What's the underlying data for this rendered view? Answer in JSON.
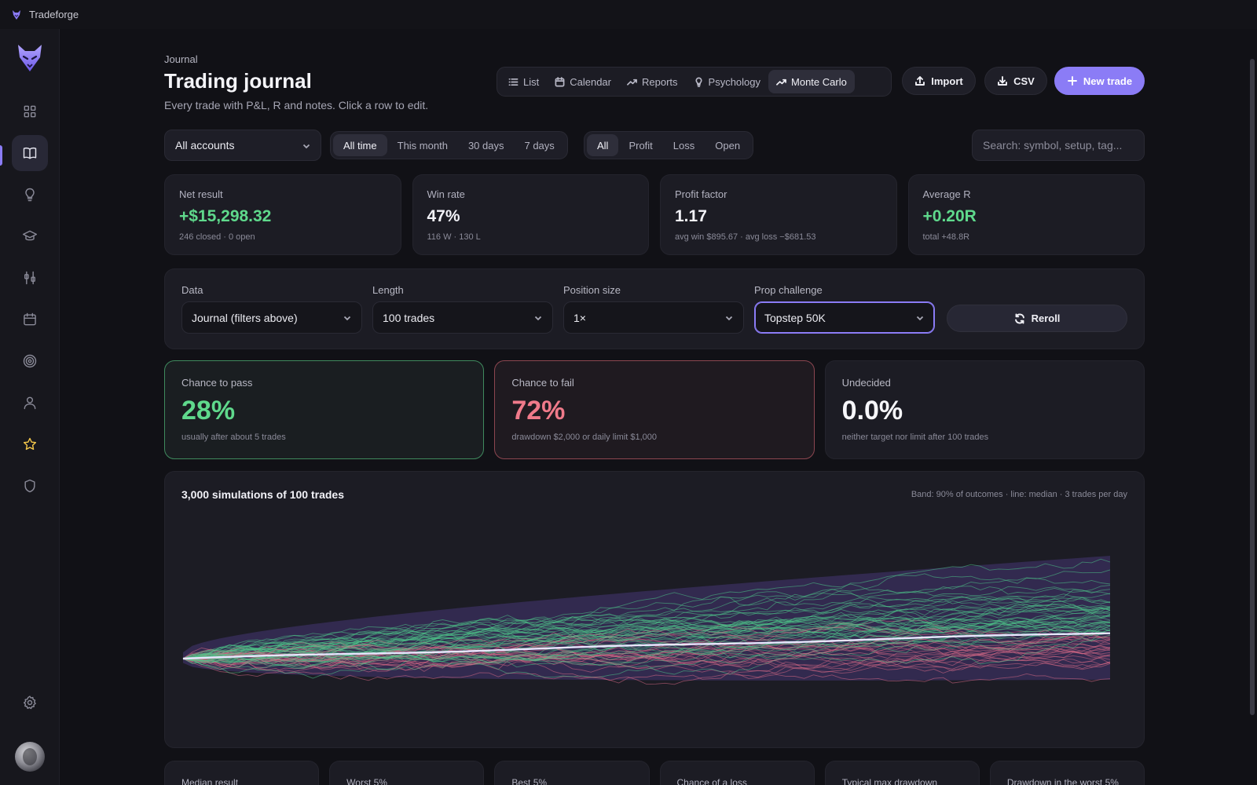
{
  "app": {
    "title": "Tradeforge"
  },
  "sidebar": {
    "items": [
      {
        "name": "dashboard",
        "icon": "grid-icon"
      },
      {
        "name": "journal",
        "icon": "book-icon",
        "active": true
      },
      {
        "name": "ideas",
        "icon": "lightbulb-icon"
      },
      {
        "name": "learn",
        "icon": "graduation-cap-icon"
      },
      {
        "name": "tools",
        "icon": "sliders-icon"
      },
      {
        "name": "calendar",
        "icon": "calendar-icon"
      },
      {
        "name": "goals",
        "icon": "target-icon"
      },
      {
        "name": "profile",
        "icon": "user-icon"
      },
      {
        "name": "favorites",
        "icon": "star-icon"
      },
      {
        "name": "security",
        "icon": "shield-icon"
      }
    ],
    "settings_icon": "gear-icon",
    "accent": "#8b7cf6"
  },
  "header": {
    "breadcrumb": "Journal",
    "title": "Trading journal",
    "subtitle": "Every trade with P&L, R and notes. Click a row to edit.",
    "view_tabs": [
      {
        "label": "List",
        "icon": "list-icon"
      },
      {
        "label": "Calendar",
        "icon": "calendar-icon"
      },
      {
        "label": "Reports",
        "icon": "trend-icon"
      },
      {
        "label": "Psychology",
        "icon": "lightbulb-icon"
      },
      {
        "label": "Monte Carlo",
        "icon": "trend-icon",
        "active": true
      }
    ],
    "import_label": "Import",
    "csv_label": "CSV",
    "new_trade_label": "New trade"
  },
  "filters": {
    "account": "All accounts",
    "periods": [
      "All time",
      "This month",
      "30 days",
      "7 days"
    ],
    "period_active": "All time",
    "outcomes": [
      "All",
      "Profit",
      "Loss",
      "Open"
    ],
    "outcome_active": "All",
    "search_placeholder": "Search: symbol, setup, tag..."
  },
  "stats": [
    {
      "label": "Net result",
      "value": "+$15,298.32",
      "sub": "246 closed · 0 open",
      "positive": true
    },
    {
      "label": "Win rate",
      "value": "47%",
      "sub": "116 W · 130 L"
    },
    {
      "label": "Profit factor",
      "value": "1.17",
      "sub": "avg win $895.67 · avg loss −$681.53"
    },
    {
      "label": "Average R",
      "value": "+0.20R",
      "sub": "total +48.8R",
      "positive": true
    }
  ],
  "controls": {
    "data_label": "Data",
    "data_value": "Journal (filters above)",
    "length_label": "Length",
    "length_value": "100 trades",
    "size_label": "Position size",
    "size_value": "1×",
    "prop_label": "Prop challenge",
    "prop_value": "Topstep 50K",
    "reroll_label": "Reroll"
  },
  "outcomes": {
    "pass": {
      "label": "Chance to pass",
      "value": "28%",
      "sub": "usually after about 5 trades"
    },
    "fail": {
      "label": "Chance to fail",
      "value": "72%",
      "sub": "drawdown $2,000 or daily limit $1,000"
    },
    "undecided": {
      "label": "Undecided",
      "value": "0.0%",
      "sub": "neither target nor limit after 100 trades"
    }
  },
  "chart": {
    "title": "3,000 simulations of 100 trades",
    "note": "Band: 90% of outcomes · line: median · 3 trades per day",
    "colors": {
      "band": "#3a2f5e",
      "median": "#e9e6ff",
      "up": "#4fc98a",
      "down": "#d86a86"
    }
  },
  "bottom_cards": [
    "Median result",
    "Worst 5%",
    "Best 5%",
    "Chance of a loss",
    "Typical max drawdown",
    "Drawdown in the worst 5%"
  ],
  "chart_data": {
    "type": "line",
    "title": "3,000 simulations of 100 trades",
    "x_range": [
      0,
      100
    ],
    "band": "90% of outcomes",
    "median_line": true,
    "grid": false,
    "legend": "none"
  }
}
